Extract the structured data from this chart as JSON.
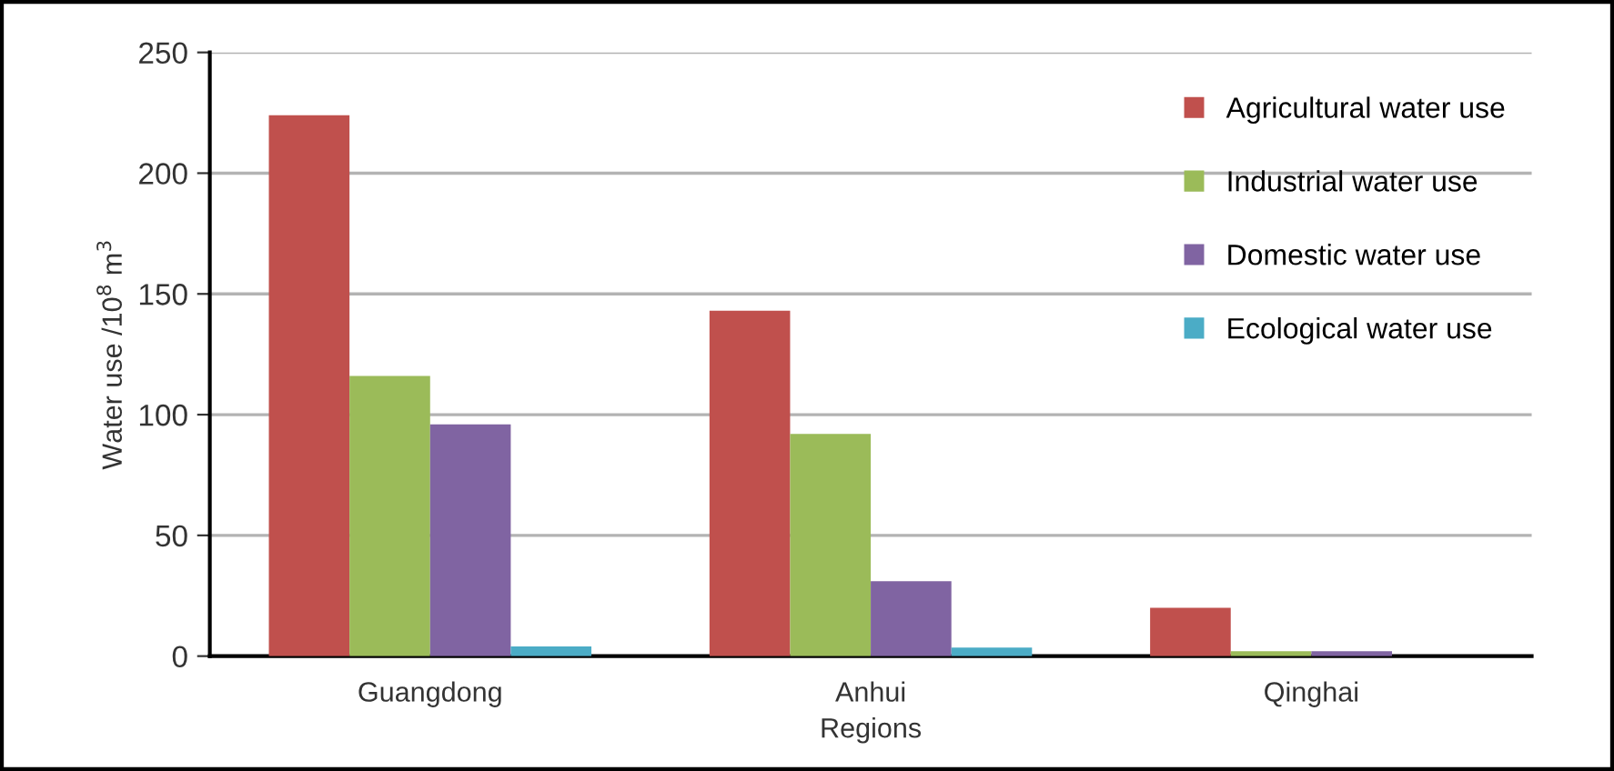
{
  "chart_data": {
    "type": "bar",
    "xlabel": "Regions",
    "ylabel": "Water use /10$^{8}$ m$^{3}$",
    "categories": [
      "Guangdong",
      "Anhui",
      "Qinghai"
    ],
    "series": [
      {
        "name": "Agricultural water use",
        "color": "#c0504d",
        "values": [
          224,
          143,
          20
        ]
      },
      {
        "name": "Industrial water use",
        "color": "#9bbb59",
        "values": [
          116,
          92,
          2
        ]
      },
      {
        "name": "Domestic water use",
        "color": "#8064a2",
        "values": [
          96,
          31,
          2
        ]
      },
      {
        "name": "Ecological water use",
        "color": "#4bacc6",
        "values": [
          4,
          3.5,
          0
        ]
      }
    ],
    "ylim": [
      0,
      250
    ],
    "yticks": [
      0,
      50,
      100,
      150,
      200,
      250
    ],
    "grid": "y",
    "legend": "top right"
  }
}
